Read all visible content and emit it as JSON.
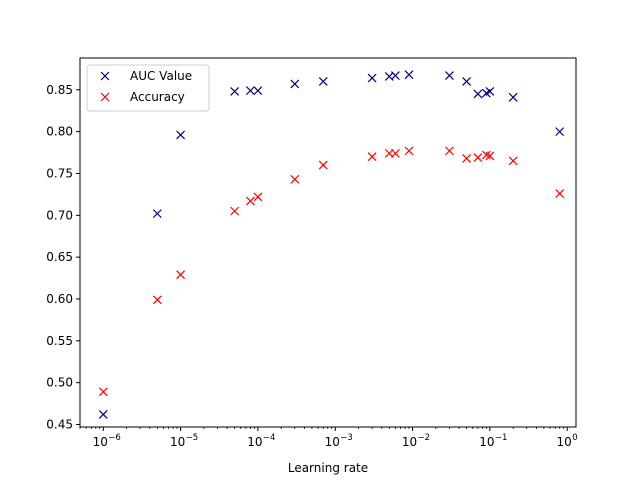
{
  "chart_data": {
    "type": "scatter",
    "xlabel": "Learning rate",
    "ylabel": "",
    "xscale": "log",
    "xlim": [
      5e-07,
      1.3
    ],
    "ylim": [
      0.447,
      0.888
    ],
    "x_ticks": [
      {
        "value": 1e-06,
        "base": "10",
        "exp": "−6"
      },
      {
        "value": 1e-05,
        "base": "10",
        "exp": "−5"
      },
      {
        "value": 0.0001,
        "base": "10",
        "exp": "−4"
      },
      {
        "value": 0.001,
        "base": "10",
        "exp": "−3"
      },
      {
        "value": 0.01,
        "base": "10",
        "exp": "−2"
      },
      {
        "value": 0.1,
        "base": "10",
        "exp": "−1"
      },
      {
        "value": 1,
        "base": "10",
        "exp": "0"
      }
    ],
    "y_ticks": [
      {
        "value": 0.45,
        "label": "0.45"
      },
      {
        "value": 0.5,
        "label": "0.50"
      },
      {
        "value": 0.55,
        "label": "0.55"
      },
      {
        "value": 0.6,
        "label": "0.60"
      },
      {
        "value": 0.65,
        "label": "0.65"
      },
      {
        "value": 0.7,
        "label": "0.70"
      },
      {
        "value": 0.75,
        "label": "0.75"
      },
      {
        "value": 0.8,
        "label": "0.80"
      },
      {
        "value": 0.85,
        "label": "0.85"
      }
    ],
    "grid": false,
    "legend_position": "top-left",
    "marker": "x",
    "series": [
      {
        "name": "AUC Value",
        "color": "#00007f",
        "x": [
          1e-06,
          5e-06,
          1e-05,
          5e-05,
          8e-05,
          0.0001,
          0.0003,
          0.0007,
          0.003,
          0.005,
          0.006,
          0.009,
          0.03,
          0.05,
          0.07,
          0.09,
          0.1,
          0.2,
          0.8
        ],
        "y": [
          0.462,
          0.702,
          0.796,
          0.848,
          0.849,
          0.849,
          0.857,
          0.86,
          0.864,
          0.866,
          0.867,
          0.868,
          0.867,
          0.86,
          0.845,
          0.846,
          0.848,
          0.841,
          0.8
        ]
      },
      {
        "name": "Accuracy",
        "color": "#ff0000",
        "x": [
          1e-06,
          5e-06,
          1e-05,
          5e-05,
          8e-05,
          0.0001,
          0.0003,
          0.0007,
          0.003,
          0.005,
          0.006,
          0.009,
          0.03,
          0.05,
          0.07,
          0.09,
          0.1,
          0.2,
          0.8
        ],
        "y": [
          0.489,
          0.599,
          0.629,
          0.705,
          0.717,
          0.722,
          0.743,
          0.76,
          0.77,
          0.774,
          0.774,
          0.777,
          0.777,
          0.768,
          0.769,
          0.772,
          0.771,
          0.765,
          0.726
        ]
      }
    ]
  }
}
